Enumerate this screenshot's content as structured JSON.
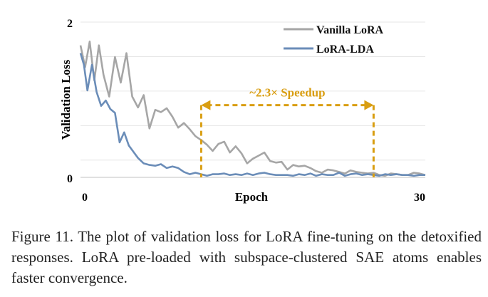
{
  "chart_data": {
    "type": "line",
    "title": "",
    "xlabel": "Epoch",
    "ylabel": "Validation Loss",
    "xlim": [
      0,
      30
    ],
    "ylim": [
      0,
      2
    ],
    "xticks": [
      "0",
      "30"
    ],
    "yticks": [
      "0",
      "2"
    ],
    "grid": "horizontal",
    "legend_position": "top-right",
    "series": [
      {
        "name": "Vanilla LoRA",
        "color": "#a6a6a6",
        "x": [
          0,
          0.4,
          0.8,
          1.2,
          1.6,
          2,
          2.5,
          3,
          3.5,
          4,
          4.5,
          5,
          5.5,
          6,
          6.5,
          7,
          7.5,
          8,
          8.5,
          9,
          9.5,
          10,
          10.5,
          11,
          11.5,
          12,
          12.5,
          13,
          13.5,
          14,
          14.5,
          15,
          15.5,
          16,
          16.5,
          17,
          17.5,
          18,
          18.5,
          19,
          19.5,
          20,
          20.5,
          21,
          21.5,
          22,
          22.5,
          23,
          23.5,
          24,
          24.5,
          25,
          25.5,
          26,
          26.5,
          27,
          27.5,
          28,
          28.5,
          29,
          29.5,
          30
        ],
        "values": [
          1.7,
          1.42,
          1.75,
          1.25,
          1.7,
          1.32,
          1.04,
          1.55,
          1.22,
          1.6,
          1.04,
          0.9,
          1.06,
          0.63,
          0.87,
          0.84,
          0.89,
          0.78,
          0.64,
          0.7,
          0.62,
          0.53,
          0.48,
          0.42,
          0.34,
          0.43,
          0.46,
          0.32,
          0.4,
          0.31,
          0.18,
          0.24,
          0.28,
          0.32,
          0.21,
          0.19,
          0.2,
          0.1,
          0.16,
          0.14,
          0.15,
          0.12,
          0.08,
          0.06,
          0.1,
          0.09,
          0.07,
          0.05,
          0.09,
          0.07,
          0.06,
          0.05,
          0.06,
          0.03,
          0.02,
          0.05,
          0.04,
          0.03,
          0.03,
          0.06,
          0.05,
          0.03
        ]
      },
      {
        "name": "LoRA-LDA",
        "color": "#6b8db8",
        "x": [
          0,
          0.3,
          0.6,
          1,
          1.4,
          1.8,
          2.2,
          2.6,
          3,
          3.4,
          3.8,
          4.2,
          4.6,
          5,
          5.5,
          6,
          6.5,
          7,
          7.5,
          8,
          8.5,
          9,
          9.5,
          10,
          10.5,
          11,
          11.5,
          12,
          12.5,
          13,
          13.5,
          14,
          14.5,
          15,
          15.5,
          16,
          16.5,
          17,
          17.5,
          18,
          18.5,
          19,
          19.5,
          20,
          20.5,
          21,
          21.5,
          22,
          22.5,
          23,
          23.5,
          24,
          24.5,
          25,
          25.5,
          26,
          26.5,
          27,
          27.5,
          28,
          28.5,
          29,
          29.5,
          30
        ],
        "values": [
          1.6,
          1.45,
          1.12,
          1.45,
          1.1,
          0.92,
          0.99,
          0.88,
          0.83,
          0.45,
          0.58,
          0.41,
          0.33,
          0.25,
          0.18,
          0.16,
          0.15,
          0.17,
          0.12,
          0.14,
          0.12,
          0.07,
          0.04,
          0.06,
          0.04,
          0.02,
          0.04,
          0.04,
          0.05,
          0.03,
          0.04,
          0.03,
          0.05,
          0.03,
          0.05,
          0.06,
          0.04,
          0.03,
          0.03,
          0.03,
          0.02,
          0.04,
          0.03,
          0.05,
          0.02,
          0.04,
          0.03,
          0.03,
          0.06,
          0.02,
          0.04,
          0.05,
          0.03,
          0.04,
          0.03,
          0.02,
          0.04,
          0.03,
          0.04,
          0.03,
          0.03,
          0.02,
          0.03,
          0.03
        ]
      }
    ],
    "annotation": {
      "label": "~2.3× Speedup",
      "x_start": 10.5,
      "x_end": 25.5,
      "y": 0.93,
      "color": "#d99e12"
    }
  },
  "caption": "Figure 11. The plot of validation loss for LoRA fine-tuning on the detoxified responses. LoRA pre-loaded with subspace-clustered SAE atoms enables faster convergence."
}
